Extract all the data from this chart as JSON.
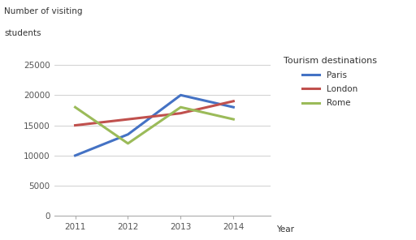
{
  "years": [
    2011,
    2012,
    2013,
    2014
  ],
  "paris": [
    10000,
    13500,
    20000,
    18000
  ],
  "london": [
    15000,
    16000,
    17000,
    19000
  ],
  "rome": [
    18000,
    12000,
    18000,
    16000
  ],
  "paris_color": "#4472C4",
  "london_color": "#C0504D",
  "rome_color": "#9BBB59",
  "ylabel_line1": "Number of visiting",
  "ylabel_line2": "students",
  "xlabel": "Year",
  "legend_title": "Tourism destinations",
  "legend_labels": [
    "Paris",
    "London",
    "Rome"
  ],
  "ylim": [
    0,
    27000
  ],
  "yticks": [
    0,
    5000,
    10000,
    15000,
    20000,
    25000
  ],
  "background_color": "#ffffff",
  "line_width": 2.2
}
